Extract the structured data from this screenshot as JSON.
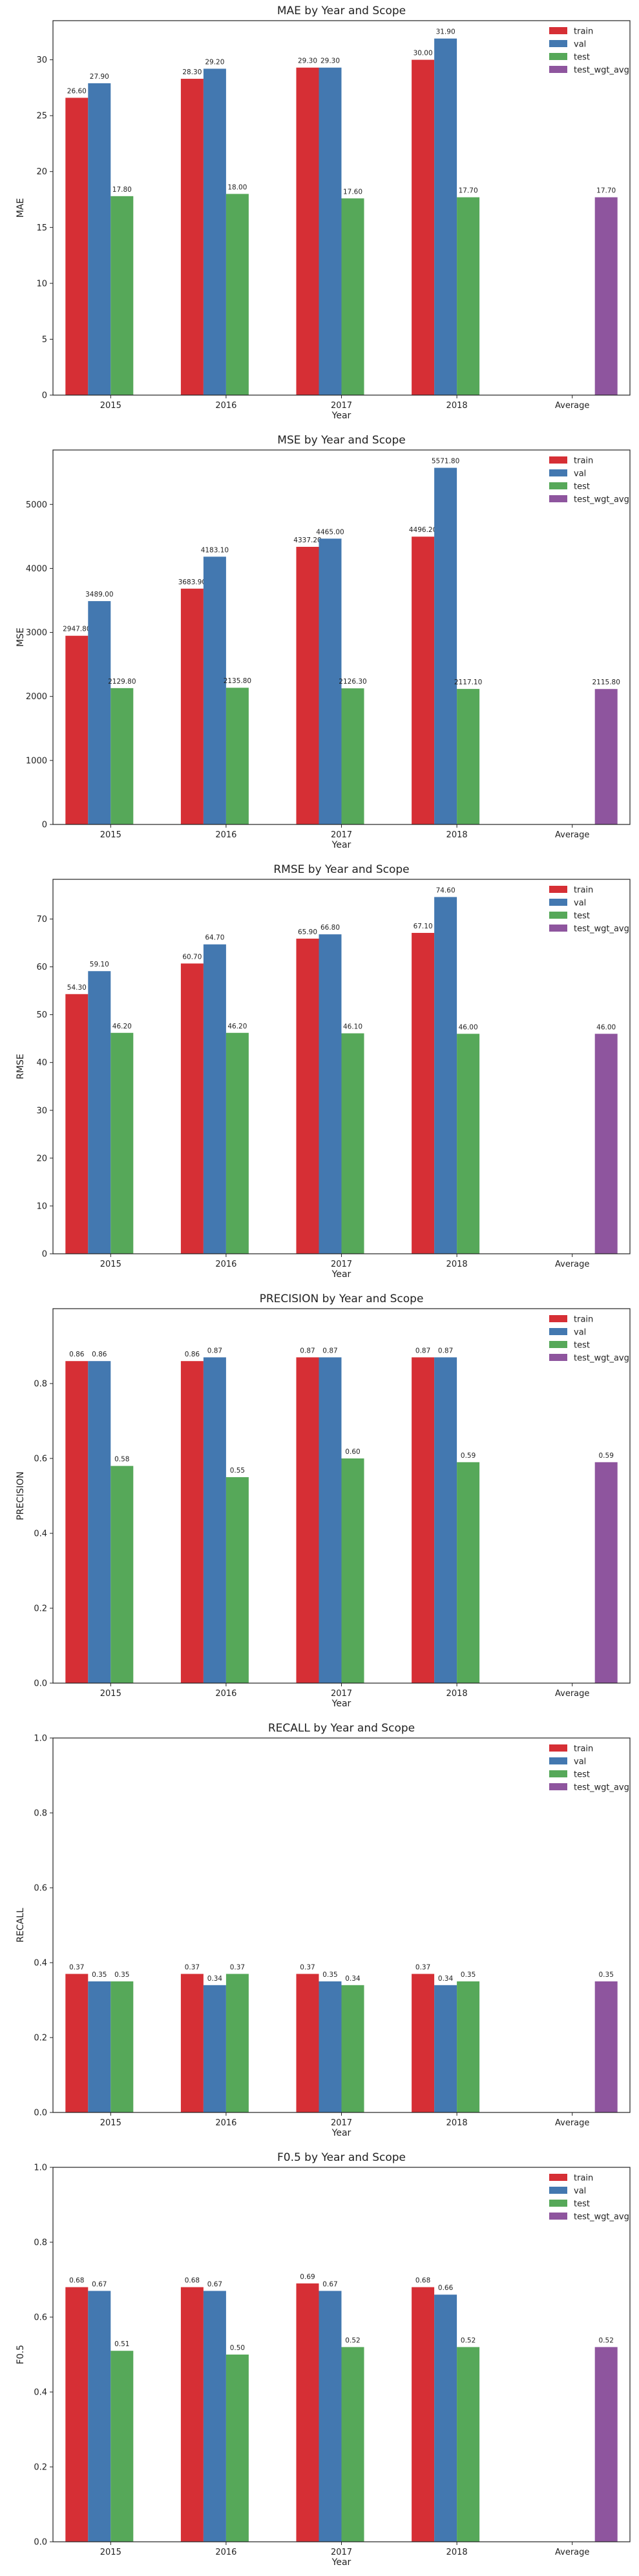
{
  "colors": {
    "train": "#d62f35",
    "val": "#4378b0",
    "test": "#56a859",
    "test_wgt_avg": "#8e559e"
  },
  "chart_data": [
    {
      "type": "bar",
      "title": "MAE by Year and Scope",
      "xlabel": "Year",
      "ylabel": "MAE",
      "categories": [
        "2015",
        "2016",
        "2017",
        "2018",
        "Average"
      ],
      "ylim": [
        0,
        33.5
      ],
      "yticks": [
        0,
        5,
        10,
        15,
        20,
        25,
        30
      ],
      "tick_format": "int",
      "legend_position": "top-right",
      "series": [
        {
          "name": "train",
          "values": [
            26.6,
            28.3,
            29.3,
            30.0,
            null
          ],
          "labels": [
            "26.60",
            "28.30",
            "29.30",
            "30.00",
            null
          ]
        },
        {
          "name": "val",
          "values": [
            27.9,
            29.2,
            29.3,
            31.9,
            null
          ],
          "labels": [
            "27.90",
            "29.20",
            "29.30",
            "31.90",
            null
          ]
        },
        {
          "name": "test",
          "values": [
            17.8,
            18.0,
            17.6,
            17.7,
            null
          ],
          "labels": [
            "17.80",
            "18.00",
            "17.60",
            "17.70",
            null
          ]
        },
        {
          "name": "test_wgt_avg",
          "values": [
            null,
            null,
            null,
            null,
            17.7
          ],
          "labels": [
            null,
            null,
            null,
            null,
            "17.70"
          ]
        }
      ]
    },
    {
      "type": "bar",
      "title": "MSE by Year and Scope",
      "xlabel": "Year",
      "ylabel": "MSE",
      "categories": [
        "2015",
        "2016",
        "2017",
        "2018",
        "Average"
      ],
      "ylim": [
        0,
        5850
      ],
      "yticks": [
        0,
        1000,
        2000,
        3000,
        4000,
        5000
      ],
      "tick_format": "int",
      "legend_position": "top-right",
      "series": [
        {
          "name": "train",
          "values": [
            2947.8,
            3683.9,
            4337.2,
            4496.2,
            null
          ],
          "labels": [
            "2947.80",
            "3683.90",
            "4337.20",
            "4496.20",
            null
          ]
        },
        {
          "name": "val",
          "values": [
            3489.0,
            4183.1,
            4465.0,
            5571.8,
            null
          ],
          "labels": [
            "3489.00",
            "4183.10",
            "4465.00",
            "5571.80",
            null
          ]
        },
        {
          "name": "test",
          "values": [
            2129.8,
            2135.8,
            2126.3,
            2117.1,
            null
          ],
          "labels": [
            "2129.80",
            "2135.80",
            "2126.30",
            "2117.10",
            null
          ]
        },
        {
          "name": "test_wgt_avg",
          "values": [
            null,
            null,
            null,
            null,
            2115.8
          ],
          "labels": [
            null,
            null,
            null,
            null,
            "2115.80"
          ]
        }
      ]
    },
    {
      "type": "bar",
      "title": "RMSE by Year and Scope",
      "xlabel": "Year",
      "ylabel": "RMSE",
      "categories": [
        "2015",
        "2016",
        "2017",
        "2018",
        "Average"
      ],
      "ylim": [
        0,
        78.3
      ],
      "yticks": [
        0,
        10,
        20,
        30,
        40,
        50,
        60,
        70
      ],
      "tick_format": "int",
      "legend_position": "top-right",
      "series": [
        {
          "name": "train",
          "values": [
            54.3,
            60.7,
            65.9,
            67.1,
            null
          ],
          "labels": [
            "54.30",
            "60.70",
            "65.90",
            "67.10",
            null
          ]
        },
        {
          "name": "val",
          "values": [
            59.1,
            64.7,
            66.8,
            74.6,
            null
          ],
          "labels": [
            "59.10",
            "64.70",
            "66.80",
            "74.60",
            null
          ]
        },
        {
          "name": "test",
          "values": [
            46.2,
            46.2,
            46.1,
            46.0,
            null
          ],
          "labels": [
            "46.20",
            "46.20",
            "46.10",
            "46.00",
            null
          ]
        },
        {
          "name": "test_wgt_avg",
          "values": [
            null,
            null,
            null,
            null,
            46.0
          ],
          "labels": [
            null,
            null,
            null,
            null,
            "46.00"
          ]
        }
      ]
    },
    {
      "type": "bar",
      "title": "PRECISION by Year and Scope",
      "xlabel": "Year",
      "ylabel": "PRECISION",
      "categories": [
        "2015",
        "2016",
        "2017",
        "2018",
        "Average"
      ],
      "ylim": [
        0,
        1.0
      ],
      "yticks": [
        0,
        0.2,
        0.4,
        0.6,
        0.8
      ],
      "tick_format": "dec1",
      "legend_position": "top-right",
      "series": [
        {
          "name": "train",
          "values": [
            0.86,
            0.86,
            0.87,
            0.87,
            null
          ],
          "labels": [
            "0.86",
            "0.86",
            "0.87",
            "0.87",
            null
          ]
        },
        {
          "name": "val",
          "values": [
            0.86,
            0.87,
            0.87,
            0.87,
            null
          ],
          "labels": [
            "0.86",
            "0.87",
            "0.87",
            "0.87",
            null
          ]
        },
        {
          "name": "test",
          "values": [
            0.58,
            0.55,
            0.6,
            0.59,
            null
          ],
          "labels": [
            "0.58",
            "0.55",
            "0.60",
            "0.59",
            null
          ]
        },
        {
          "name": "test_wgt_avg",
          "values": [
            null,
            null,
            null,
            null,
            0.59
          ],
          "labels": [
            null,
            null,
            null,
            null,
            "0.59"
          ]
        }
      ]
    },
    {
      "type": "bar",
      "title": "RECALL by Year and Scope",
      "xlabel": "Year",
      "ylabel": "RECALL",
      "categories": [
        "2015",
        "2016",
        "2017",
        "2018",
        "Average"
      ],
      "ylim": [
        0,
        1.0
      ],
      "yticks": [
        0,
        0.2,
        0.4,
        0.6,
        0.8,
        1.0
      ],
      "tick_format": "dec1",
      "legend_position": "top-right",
      "series": [
        {
          "name": "train",
          "values": [
            0.37,
            0.37,
            0.37,
            0.37,
            null
          ],
          "labels": [
            "0.37",
            "0.37",
            "0.37",
            "0.37",
            null
          ]
        },
        {
          "name": "val",
          "values": [
            0.35,
            0.34,
            0.35,
            0.34,
            null
          ],
          "labels": [
            "0.35",
            "0.34",
            "0.35",
            "0.34",
            null
          ]
        },
        {
          "name": "test",
          "values": [
            0.35,
            0.37,
            0.34,
            0.35,
            null
          ],
          "labels": [
            "0.35",
            "0.37",
            "0.34",
            "0.35",
            null
          ]
        },
        {
          "name": "test_wgt_avg",
          "values": [
            null,
            null,
            null,
            null,
            0.35
          ],
          "labels": [
            null,
            null,
            null,
            null,
            "0.35"
          ]
        }
      ]
    },
    {
      "type": "bar",
      "title": "F0.5 by Year and Scope",
      "xlabel": "Year",
      "ylabel": "F0.5",
      "categories": [
        "2015",
        "2016",
        "2017",
        "2018",
        "Average"
      ],
      "ylim": [
        0,
        1.0
      ],
      "yticks": [
        0,
        0.2,
        0.4,
        0.6,
        0.8,
        1.0
      ],
      "tick_format": "dec1",
      "legend_position": "top-right",
      "series": [
        {
          "name": "train",
          "values": [
            0.68,
            0.68,
            0.69,
            0.68,
            null
          ],
          "labels": [
            "0.68",
            "0.68",
            "0.69",
            "0.68",
            null
          ]
        },
        {
          "name": "val",
          "values": [
            0.67,
            0.67,
            0.67,
            0.66,
            null
          ],
          "labels": [
            "0.67",
            "0.67",
            "0.67",
            "0.66",
            null
          ]
        },
        {
          "name": "test",
          "values": [
            0.51,
            0.5,
            0.52,
            0.52,
            null
          ],
          "labels": [
            "0.51",
            "0.50",
            "0.52",
            "0.52",
            null
          ]
        },
        {
          "name": "test_wgt_avg",
          "values": [
            null,
            null,
            null,
            null,
            0.52
          ],
          "labels": [
            null,
            null,
            null,
            null,
            "0.52"
          ]
        }
      ]
    }
  ]
}
